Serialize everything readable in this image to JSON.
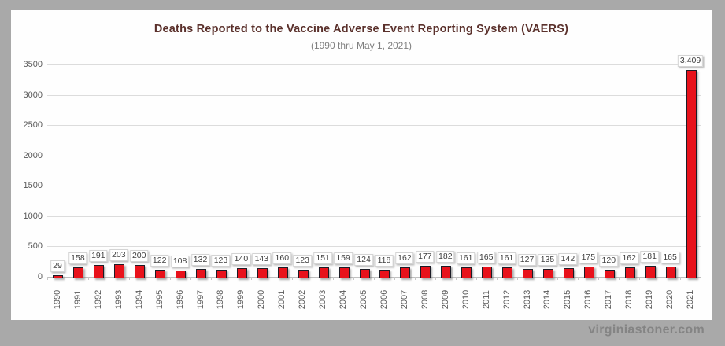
{
  "page": {
    "watermark": "virginiastoner.com"
  },
  "chart_data": {
    "type": "bar",
    "title": "Deaths Reported to the Vaccine Adverse Event Reporting System (VAERS)",
    "subtitle": "(1990 thru May 1, 2021)",
    "categories": [
      "1990",
      "1991",
      "1992",
      "1993",
      "1994",
      "1995",
      "1996",
      "1997",
      "1998",
      "1999",
      "2000",
      "2001",
      "2002",
      "2003",
      "2004",
      "2005",
      "2006",
      "2007",
      "2008",
      "2009",
      "2010",
      "2011",
      "2012",
      "2013",
      "2014",
      "2015",
      "2016",
      "2017",
      "2018",
      "2019",
      "2020",
      "2021"
    ],
    "values": [
      29,
      158,
      191,
      203,
      200,
      122,
      108,
      132,
      123,
      140,
      143,
      160,
      123,
      151,
      159,
      124,
      118,
      162,
      177,
      182,
      161,
      165,
      161,
      127,
      135,
      142,
      175,
      120,
      162,
      181,
      165,
      3409
    ],
    "data_labels": [
      "29",
      "158",
      "191",
      "203",
      "200",
      "122",
      "108",
      "132",
      "123",
      "140",
      "143",
      "160",
      "123",
      "151",
      "159",
      "124",
      "118",
      "162",
      "177",
      "182",
      "161",
      "165",
      "161",
      "127",
      "135",
      "142",
      "175",
      "120",
      "162",
      "181",
      "165",
      "3,409"
    ],
    "xlabel": "",
    "ylabel": "",
    "ylim": [
      0,
      3500
    ],
    "yticks": [
      0,
      500,
      1000,
      1500,
      2000,
      2500,
      3000,
      3500
    ],
    "grid": true,
    "legend": "none",
    "data_label_boxes": true,
    "colors": {
      "bar_fill": "#e8121b",
      "bar_border": "#1c1c26",
      "title_color": "#5a302b",
      "subtitle_color": "#7f7f7f",
      "axis_text_color": "#595959",
      "gridline_color": "#dcdcdc",
      "frame_background": "#a9a9a9",
      "plot_background": "#fefefe"
    }
  }
}
